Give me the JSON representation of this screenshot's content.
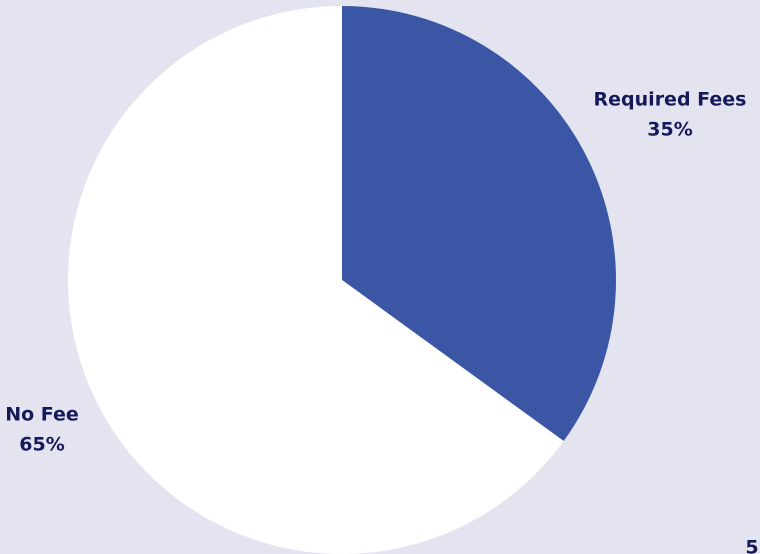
{
  "chart_data": {
    "type": "pie",
    "categories": [
      "Required Fees",
      "No Fee"
    ],
    "values": [
      35,
      65
    ],
    "value_labels": [
      "35%",
      "65%"
    ],
    "colors": [
      "#3b56a5",
      "#ffffff"
    ],
    "annotation": "5"
  }
}
